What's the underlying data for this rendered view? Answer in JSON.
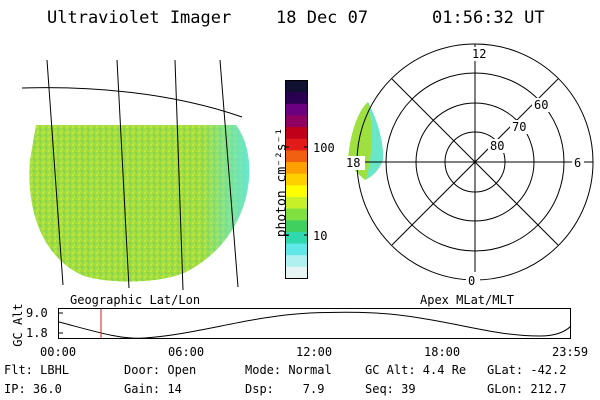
{
  "header": {
    "instrument": "Ultraviolet Imager",
    "date": "18 Dec 07",
    "time": "01:56:32 UT"
  },
  "geo_panel": {
    "label": "Geographic Lat/Lon"
  },
  "polar_panel": {
    "label": "Apex MLat/MLT",
    "mlt_labels": [
      "12",
      "18",
      "6",
      "0"
    ],
    "mlat_labels": [
      "60",
      "70",
      "80"
    ]
  },
  "colorbar": {
    "unit_label": "photon cm⁻²s⁻¹",
    "ticks": [
      "100",
      "10"
    ],
    "colors": [
      "#101030",
      "#2a0050",
      "#6b0080",
      "#900060",
      "#c00018",
      "#e21a1a",
      "#f06010",
      "#ffa000",
      "#ffd000",
      "#ffff00",
      "#c8f028",
      "#80e040",
      "#40d060",
      "#30d8b0",
      "#60e8e8",
      "#b0f0f0",
      "#e6f4f4"
    ]
  },
  "altitude_plot": {
    "ylabel": "GC Alt",
    "ymax_label": "9.0",
    "ymin_label": "1.8",
    "xticks": [
      "00:00",
      "06:00",
      "12:00",
      "18:00",
      "23:59"
    ],
    "marker_color": "#d02020"
  },
  "footer": {
    "row1": [
      "Flt: LBHL",
      "Door: Open",
      "Mode: Normal",
      "GC Alt: 4.4 Re",
      "GLat: -42.2"
    ],
    "row2": [
      "IP: 36.0",
      "Gain: 14",
      "Dsp:    7.9",
      "Seq: 39",
      "GLon: 212.7"
    ]
  },
  "colors": {
    "aurora_green": "#9ee040",
    "aurora_cyan": "#60e8e0"
  }
}
